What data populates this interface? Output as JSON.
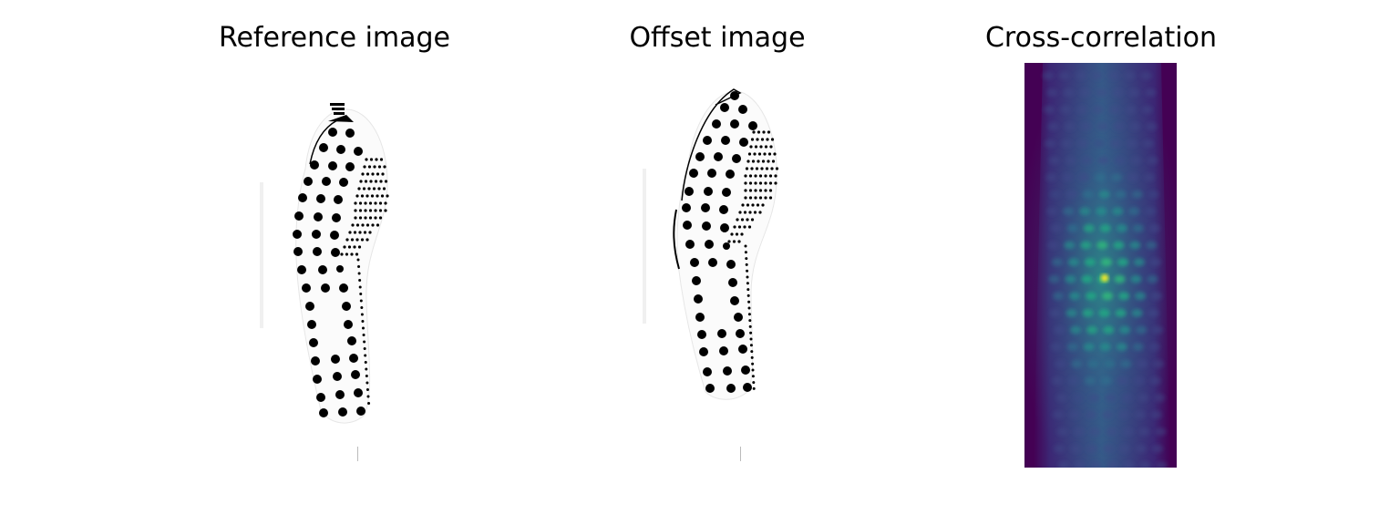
{
  "panels": [
    {
      "title": "Reference image"
    },
    {
      "title": "Offset image"
    },
    {
      "title": "Cross-correlation"
    }
  ],
  "colors": {
    "background": "#ffffff",
    "text": "#000000",
    "dot": "#000000",
    "xcorr_low": "#440154",
    "xcorr_mid": "#31688e",
    "xcorr_high": "#35b779",
    "xcorr_peak": "#fde725"
  }
}
